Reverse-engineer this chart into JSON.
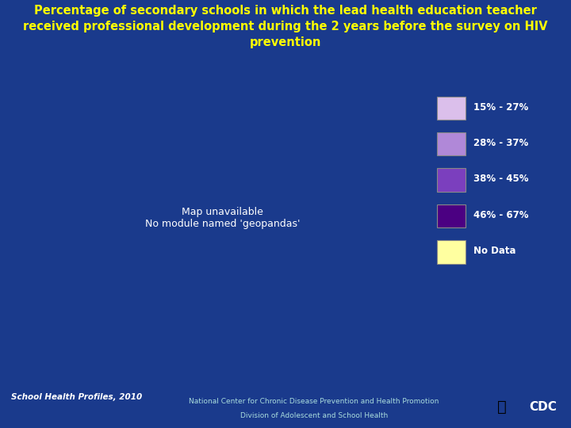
{
  "title": "Percentage of secondary schools in which the lead health education teacher\nreceived professional development during the 2 years before the survey on HIV\nprevention",
  "title_color": "#FFFF00",
  "title_fontsize": 10.5,
  "background_color": "#1a3a8c",
  "title_box_color": "#1e4494",
  "footer_text1": "School Health Profiles, 2010",
  "footer_text2": "National Center for Chronic Disease Prevention and Health Promotion",
  "footer_text3": "Division of Adolescent and School Health",
  "legend_labels": [
    "15% - 27%",
    "28% - 37%",
    "38% - 45%",
    "46% - 67%",
    "No Data"
  ],
  "legend_colors": [
    "#dbbfeb",
    "#b088d8",
    "#7b3fbe",
    "#4b0082",
    "#ffffa0"
  ],
  "edge_color": "#ffffff",
  "state_colors": {
    "Alabama": "#7b3fbe",
    "Alaska": "#dbbfeb",
    "Arizona": "#7b3fbe",
    "Arkansas": "#7b3fbe",
    "California": "#dbbfeb",
    "Colorado": "#4b0082",
    "Connecticut": "#b088d8",
    "Delaware": "#b088d8",
    "Florida": "#7b3fbe",
    "Georgia": "#7b3fbe",
    "Hawaii": "#7b3fbe",
    "Idaho": "#dbbfeb",
    "Illinois": "#ffffa0",
    "Indiana": "#b088d8",
    "Iowa": "#dbbfeb",
    "Kansas": "#b088d8",
    "Kentucky": "#7b3fbe",
    "Louisiana": "#7b3fbe",
    "Maine": "#dbbfeb",
    "Maryland": "#7b3fbe",
    "Massachusetts": "#7b3fbe",
    "Michigan": "#4b0082",
    "Minnesota": "#b088d8",
    "Mississippi": "#4b0082",
    "Missouri": "#b088d8",
    "Montana": "#b088d8",
    "Nebraska": "#dbbfeb",
    "Nevada": "#4b0082",
    "New Hampshire": "#b088d8",
    "New Jersey": "#b088d8",
    "New Mexico": "#ffffa0",
    "New York": "#4b0082",
    "North Carolina": "#dbbfeb",
    "North Dakota": "#b088d8",
    "Ohio": "#b088d8",
    "Oklahoma": "#4b0082",
    "Oregon": "#b088d8",
    "Pennsylvania": "#7b3fbe",
    "Rhode Island": "#b088d8",
    "South Carolina": "#7b3fbe",
    "South Dakota": "#dbbfeb",
    "Tennessee": "#7b3fbe",
    "Texas": "#7b3fbe",
    "Utah": "#ffffa0",
    "Vermont": "#dbbfeb",
    "Virginia": "#dbbfeb",
    "Washington": "#4b0082",
    "West Virginia": "#b088d8",
    "Wisconsin": "#b088d8",
    "Wyoming": "#dbbfeb",
    "District of Columbia": "#7b3fbe"
  }
}
